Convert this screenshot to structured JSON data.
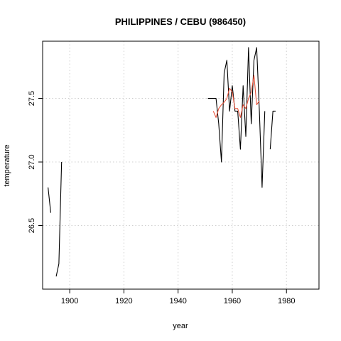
{
  "chart_data": {
    "type": "line",
    "title": "PHILIPPINES / CEBU (986450)",
    "xlabel": "year",
    "ylabel": "temperature",
    "xlim": [
      1890,
      1992
    ],
    "ylim": [
      26.0,
      27.95
    ],
    "x_ticks": [
      1900,
      1920,
      1940,
      1960,
      1980
    ],
    "y_ticks": [
      26.5,
      27.0,
      27.5
    ],
    "grid": true,
    "grid_style": "dotted",
    "series": [
      {
        "color": "#000000",
        "segments": [
          [
            [
              1892,
              26.8
            ],
            [
              1893,
              26.6
            ]
          ],
          [
            [
              1895,
              26.1
            ],
            [
              1896,
              26.2
            ],
            [
              1897,
              27.0
            ]
          ],
          [
            [
              1951,
              27.5
            ],
            [
              1952,
              27.5
            ],
            [
              1953,
              27.5
            ],
            [
              1954,
              27.5
            ],
            [
              1955,
              27.3
            ],
            [
              1956,
              27.0
            ],
            [
              1957,
              27.7
            ],
            [
              1958,
              27.8
            ],
            [
              1959,
              27.4
            ],
            [
              1960,
              27.6
            ],
            [
              1961,
              27.4
            ],
            [
              1962,
              27.4
            ],
            [
              1963,
              27.1
            ],
            [
              1964,
              27.6
            ],
            [
              1965,
              27.2
            ],
            [
              1966,
              27.9
            ],
            [
              1967,
              27.3
            ],
            [
              1968,
              27.8
            ],
            [
              1969,
              27.9
            ],
            [
              1970,
              27.4
            ],
            [
              1971,
              26.8
            ],
            [
              1972,
              27.4
            ]
          ],
          [
            [
              1974,
              27.1
            ],
            [
              1975,
              27.4
            ],
            [
              1976,
              27.4
            ]
          ]
        ]
      },
      {
        "color": "#e8523a",
        "segments": [
          [
            [
              1953,
              27.4
            ],
            [
              1954,
              27.35
            ],
            [
              1955,
              27.42
            ],
            [
              1956,
              27.45
            ],
            [
              1957,
              27.47
            ],
            [
              1958,
              27.5
            ],
            [
              1959,
              27.58
            ],
            [
              1960,
              27.55
            ],
            [
              1961,
              27.42
            ],
            [
              1962,
              27.42
            ],
            [
              1963,
              27.35
            ],
            [
              1964,
              27.45
            ],
            [
              1965,
              27.42
            ],
            [
              1966,
              27.5
            ],
            [
              1967,
              27.55
            ],
            [
              1968,
              27.68
            ],
            [
              1969,
              27.45
            ],
            [
              1970,
              27.48
            ]
          ]
        ]
      }
    ]
  }
}
